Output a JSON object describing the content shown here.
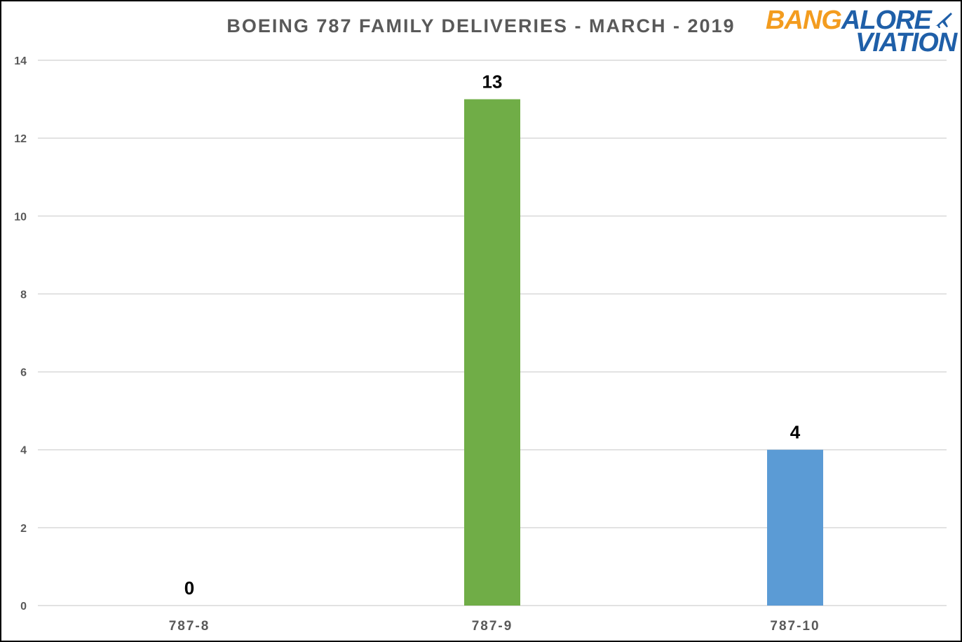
{
  "chart_data": {
    "type": "bar",
    "title": "BOEING  787 FAMILY  DELIVERIES  - MARCH  - 2019",
    "categories": [
      "787-8",
      "787-9",
      "787-10"
    ],
    "values": [
      0,
      13,
      4
    ],
    "data_labels": [
      "0",
      "13",
      "4"
    ],
    "bar_colors": [
      "#4472c4",
      "#70ad47",
      "#5b9bd5"
    ],
    "ylim": [
      0,
      14
    ],
    "yticks": [
      0,
      2,
      4,
      6,
      8,
      10,
      12,
      14
    ],
    "ytick_labels": [
      "0",
      "2",
      "4",
      "6",
      "8",
      "10",
      "12",
      "14"
    ],
    "grid": true,
    "legend": "none",
    "xlabel": "",
    "ylabel": ""
  },
  "logo": {
    "line1_orange": "BANG",
    "line1_blue": "ALORE",
    "line2": "VIATION",
    "icon": "airplane-icon"
  },
  "colors": {
    "title": "#595959",
    "grid": "#d9d9d9",
    "tick_label": "#595959",
    "data_label": "#000000"
  }
}
